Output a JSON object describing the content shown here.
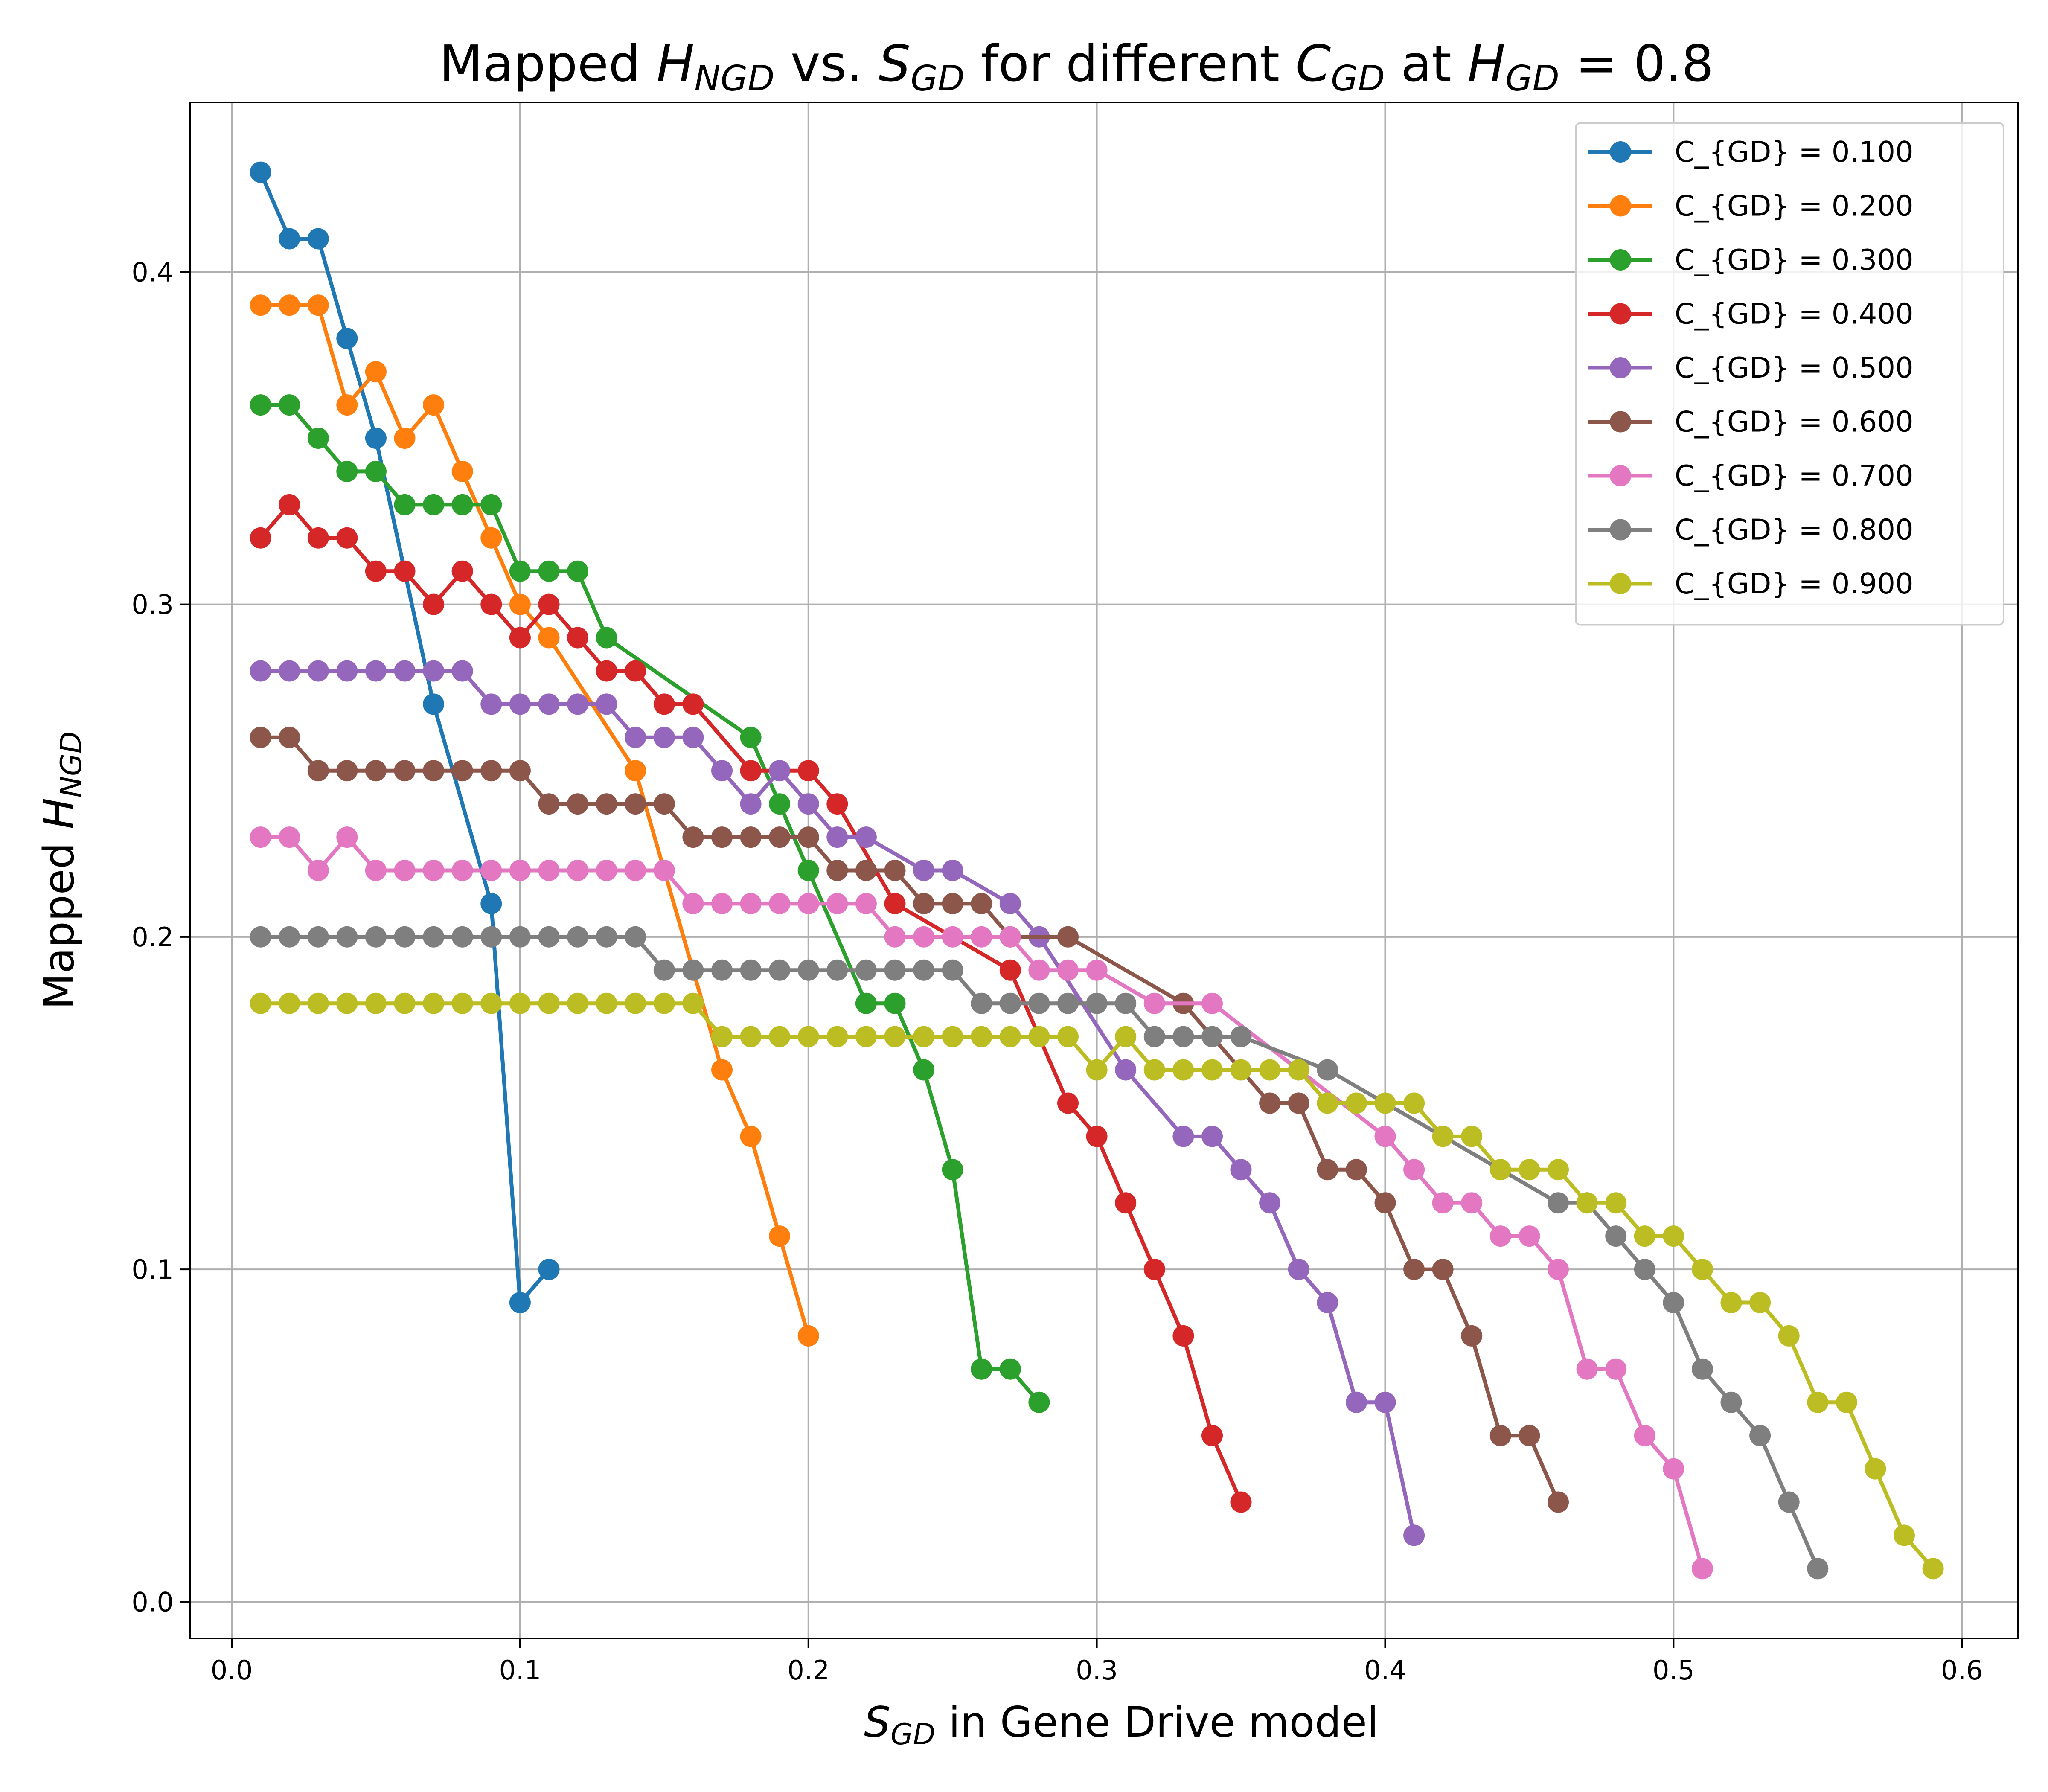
{
  "chart_data": {
    "type": "line",
    "title": {
      "pre": "Mapped ",
      "v1": "H",
      "v1_sub": "NGD",
      "mid1": " vs. ",
      "v2": "S",
      "v2_sub": "GD",
      "mid2": " for different ",
      "v3": "C",
      "v3_sub": "GD",
      "mid3": " at ",
      "v4": "H",
      "v4_sub": "GD",
      "post": " = 0.8"
    },
    "xlabel": {
      "var": "S",
      "sub": "GD",
      "text": " in Gene Drive model"
    },
    "ylabel": {
      "pre": "Mapped ",
      "var": "H",
      "sub": "NGD"
    },
    "xlim": [
      -0.0145,
      0.6195
    ],
    "ylim": [
      -0.011,
      0.451
    ],
    "xticks": [
      0.0,
      0.1,
      0.2,
      0.3,
      0.4,
      0.5,
      0.6
    ],
    "xtick_labels": [
      "0.0",
      "0.1",
      "0.2",
      "0.3",
      "0.4",
      "0.5",
      "0.6"
    ],
    "yticks": [
      0.0,
      0.1,
      0.2,
      0.3,
      0.4
    ],
    "ytick_labels": [
      "0.0",
      "0.1",
      "0.2",
      "0.3",
      "0.4"
    ],
    "grid": true,
    "legend_position": "top-right",
    "series": [
      {
        "name": "C_{GD} = 0.100",
        "color": "#1f77b4",
        "x": [
          0.01,
          0.02,
          0.03,
          0.04,
          0.05,
          0.07,
          0.09,
          0.1,
          0.11
        ],
        "y": [
          0.43,
          0.41,
          0.41,
          0.38,
          0.35,
          0.27,
          0.21,
          0.09,
          0.1
        ]
      },
      {
        "name": "C_{GD} = 0.200",
        "color": "#ff7f0e",
        "x": [
          0.01,
          0.02,
          0.03,
          0.04,
          0.05,
          0.06,
          0.07,
          0.08,
          0.09,
          0.1,
          0.11,
          0.14,
          0.17,
          0.18,
          0.19,
          0.2
        ],
        "y": [
          0.39,
          0.39,
          0.39,
          0.36,
          0.37,
          0.35,
          0.36,
          0.34,
          0.32,
          0.3,
          0.29,
          0.25,
          0.16,
          0.14,
          0.11,
          0.08
        ]
      },
      {
        "name": "C_{GD} = 0.300",
        "color": "#2ca02c",
        "x": [
          0.01,
          0.02,
          0.03,
          0.04,
          0.05,
          0.06,
          0.07,
          0.08,
          0.09,
          0.1,
          0.11,
          0.12,
          0.13,
          0.18,
          0.19,
          0.2,
          0.22,
          0.23,
          0.24,
          0.25,
          0.26,
          0.27,
          0.28
        ],
        "y": [
          0.36,
          0.36,
          0.35,
          0.34,
          0.34,
          0.33,
          0.33,
          0.33,
          0.33,
          0.31,
          0.31,
          0.31,
          0.29,
          0.26,
          0.24,
          0.22,
          0.18,
          0.18,
          0.16,
          0.13,
          0.07,
          0.07,
          0.06
        ]
      },
      {
        "name": "C_{GD} = 0.400",
        "color": "#d62728",
        "x": [
          0.01,
          0.02,
          0.03,
          0.04,
          0.05,
          0.06,
          0.07,
          0.08,
          0.09,
          0.1,
          0.11,
          0.12,
          0.13,
          0.14,
          0.15,
          0.16,
          0.18,
          0.2,
          0.21,
          0.23,
          0.27,
          0.29,
          0.3,
          0.31,
          0.32,
          0.33,
          0.34,
          0.35
        ],
        "y": [
          0.32,
          0.33,
          0.32,
          0.32,
          0.31,
          0.31,
          0.3,
          0.31,
          0.3,
          0.29,
          0.3,
          0.29,
          0.28,
          0.28,
          0.27,
          0.27,
          0.25,
          0.25,
          0.24,
          0.21,
          0.19,
          0.15,
          0.14,
          0.12,
          0.1,
          0.08,
          0.05,
          0.03
        ]
      },
      {
        "name": "C_{GD} = 0.500",
        "color": "#9467bd",
        "x": [
          0.01,
          0.02,
          0.03,
          0.04,
          0.05,
          0.06,
          0.07,
          0.08,
          0.09,
          0.1,
          0.11,
          0.12,
          0.13,
          0.14,
          0.15,
          0.16,
          0.17,
          0.18,
          0.19,
          0.2,
          0.21,
          0.22,
          0.24,
          0.25,
          0.27,
          0.28,
          0.31,
          0.33,
          0.34,
          0.35,
          0.36,
          0.37,
          0.38,
          0.39,
          0.4,
          0.41
        ],
        "y": [
          0.28,
          0.28,
          0.28,
          0.28,
          0.28,
          0.28,
          0.28,
          0.28,
          0.27,
          0.27,
          0.27,
          0.27,
          0.27,
          0.26,
          0.26,
          0.26,
          0.25,
          0.24,
          0.25,
          0.24,
          0.23,
          0.23,
          0.22,
          0.22,
          0.21,
          0.2,
          0.16,
          0.14,
          0.14,
          0.13,
          0.12,
          0.1,
          0.09,
          0.06,
          0.06,
          0.02
        ]
      },
      {
        "name": "C_{GD} = 0.600",
        "color": "#8c564b",
        "x": [
          0.01,
          0.02,
          0.03,
          0.04,
          0.05,
          0.06,
          0.07,
          0.08,
          0.09,
          0.1,
          0.11,
          0.12,
          0.13,
          0.14,
          0.15,
          0.16,
          0.17,
          0.18,
          0.19,
          0.2,
          0.21,
          0.22,
          0.23,
          0.24,
          0.25,
          0.26,
          0.27,
          0.29,
          0.33,
          0.36,
          0.37,
          0.38,
          0.39,
          0.4,
          0.41,
          0.42,
          0.43,
          0.44,
          0.45,
          0.46
        ],
        "y": [
          0.26,
          0.26,
          0.25,
          0.25,
          0.25,
          0.25,
          0.25,
          0.25,
          0.25,
          0.25,
          0.24,
          0.24,
          0.24,
          0.24,
          0.24,
          0.23,
          0.23,
          0.23,
          0.23,
          0.23,
          0.22,
          0.22,
          0.22,
          0.21,
          0.21,
          0.21,
          0.2,
          0.2,
          0.18,
          0.15,
          0.15,
          0.13,
          0.13,
          0.12,
          0.1,
          0.1,
          0.08,
          0.05,
          0.05,
          0.03
        ]
      },
      {
        "name": "C_{GD} = 0.700",
        "color": "#e377c2",
        "x": [
          0.01,
          0.02,
          0.03,
          0.04,
          0.05,
          0.06,
          0.07,
          0.08,
          0.09,
          0.1,
          0.11,
          0.12,
          0.13,
          0.14,
          0.15,
          0.16,
          0.17,
          0.18,
          0.19,
          0.2,
          0.21,
          0.22,
          0.23,
          0.24,
          0.25,
          0.26,
          0.27,
          0.28,
          0.29,
          0.3,
          0.32,
          0.34,
          0.4,
          0.41,
          0.42,
          0.43,
          0.44,
          0.45,
          0.46,
          0.47,
          0.48,
          0.49,
          0.5,
          0.51
        ],
        "y": [
          0.23,
          0.23,
          0.22,
          0.23,
          0.22,
          0.22,
          0.22,
          0.22,
          0.22,
          0.22,
          0.22,
          0.22,
          0.22,
          0.22,
          0.22,
          0.21,
          0.21,
          0.21,
          0.21,
          0.21,
          0.21,
          0.21,
          0.2,
          0.2,
          0.2,
          0.2,
          0.2,
          0.19,
          0.19,
          0.19,
          0.18,
          0.18,
          0.14,
          0.13,
          0.12,
          0.12,
          0.11,
          0.11,
          0.1,
          0.07,
          0.07,
          0.05,
          0.04,
          0.01
        ]
      },
      {
        "name": "C_{GD} = 0.800",
        "color": "#7f7f7f",
        "x": [
          0.01,
          0.02,
          0.03,
          0.04,
          0.05,
          0.06,
          0.07,
          0.08,
          0.09,
          0.1,
          0.11,
          0.12,
          0.13,
          0.14,
          0.15,
          0.16,
          0.17,
          0.18,
          0.19,
          0.2,
          0.21,
          0.22,
          0.23,
          0.24,
          0.25,
          0.26,
          0.27,
          0.28,
          0.29,
          0.3,
          0.31,
          0.32,
          0.33,
          0.34,
          0.35,
          0.38,
          0.46,
          0.47,
          0.48,
          0.49,
          0.5,
          0.51,
          0.52,
          0.53,
          0.54,
          0.55
        ],
        "y": [
          0.2,
          0.2,
          0.2,
          0.2,
          0.2,
          0.2,
          0.2,
          0.2,
          0.2,
          0.2,
          0.2,
          0.2,
          0.2,
          0.2,
          0.19,
          0.19,
          0.19,
          0.19,
          0.19,
          0.19,
          0.19,
          0.19,
          0.19,
          0.19,
          0.19,
          0.18,
          0.18,
          0.18,
          0.18,
          0.18,
          0.18,
          0.17,
          0.17,
          0.17,
          0.17,
          0.16,
          0.12,
          0.12,
          0.11,
          0.1,
          0.09,
          0.07,
          0.06,
          0.05,
          0.03,
          0.01
        ]
      },
      {
        "name": "C_{GD} = 0.900",
        "color": "#bcbd22",
        "x": [
          0.01,
          0.02,
          0.03,
          0.04,
          0.05,
          0.06,
          0.07,
          0.08,
          0.09,
          0.1,
          0.11,
          0.12,
          0.13,
          0.14,
          0.15,
          0.16,
          0.17,
          0.18,
          0.19,
          0.2,
          0.21,
          0.22,
          0.23,
          0.24,
          0.25,
          0.26,
          0.27,
          0.28,
          0.29,
          0.3,
          0.31,
          0.32,
          0.33,
          0.34,
          0.35,
          0.36,
          0.37,
          0.38,
          0.39,
          0.4,
          0.41,
          0.42,
          0.43,
          0.44,
          0.45,
          0.46,
          0.47,
          0.48,
          0.49,
          0.5,
          0.51,
          0.52,
          0.53,
          0.54,
          0.55,
          0.56,
          0.57,
          0.58,
          0.59
        ],
        "y": [
          0.18,
          0.18,
          0.18,
          0.18,
          0.18,
          0.18,
          0.18,
          0.18,
          0.18,
          0.18,
          0.18,
          0.18,
          0.18,
          0.18,
          0.18,
          0.18,
          0.17,
          0.17,
          0.17,
          0.17,
          0.17,
          0.17,
          0.17,
          0.17,
          0.17,
          0.17,
          0.17,
          0.17,
          0.17,
          0.16,
          0.17,
          0.16,
          0.16,
          0.16,
          0.16,
          0.16,
          0.16,
          0.15,
          0.15,
          0.15,
          0.15,
          0.14,
          0.14,
          0.13,
          0.13,
          0.13,
          0.12,
          0.12,
          0.11,
          0.11,
          0.1,
          0.09,
          0.09,
          0.08,
          0.06,
          0.06,
          0.04,
          0.02,
          0.01
        ]
      }
    ]
  }
}
